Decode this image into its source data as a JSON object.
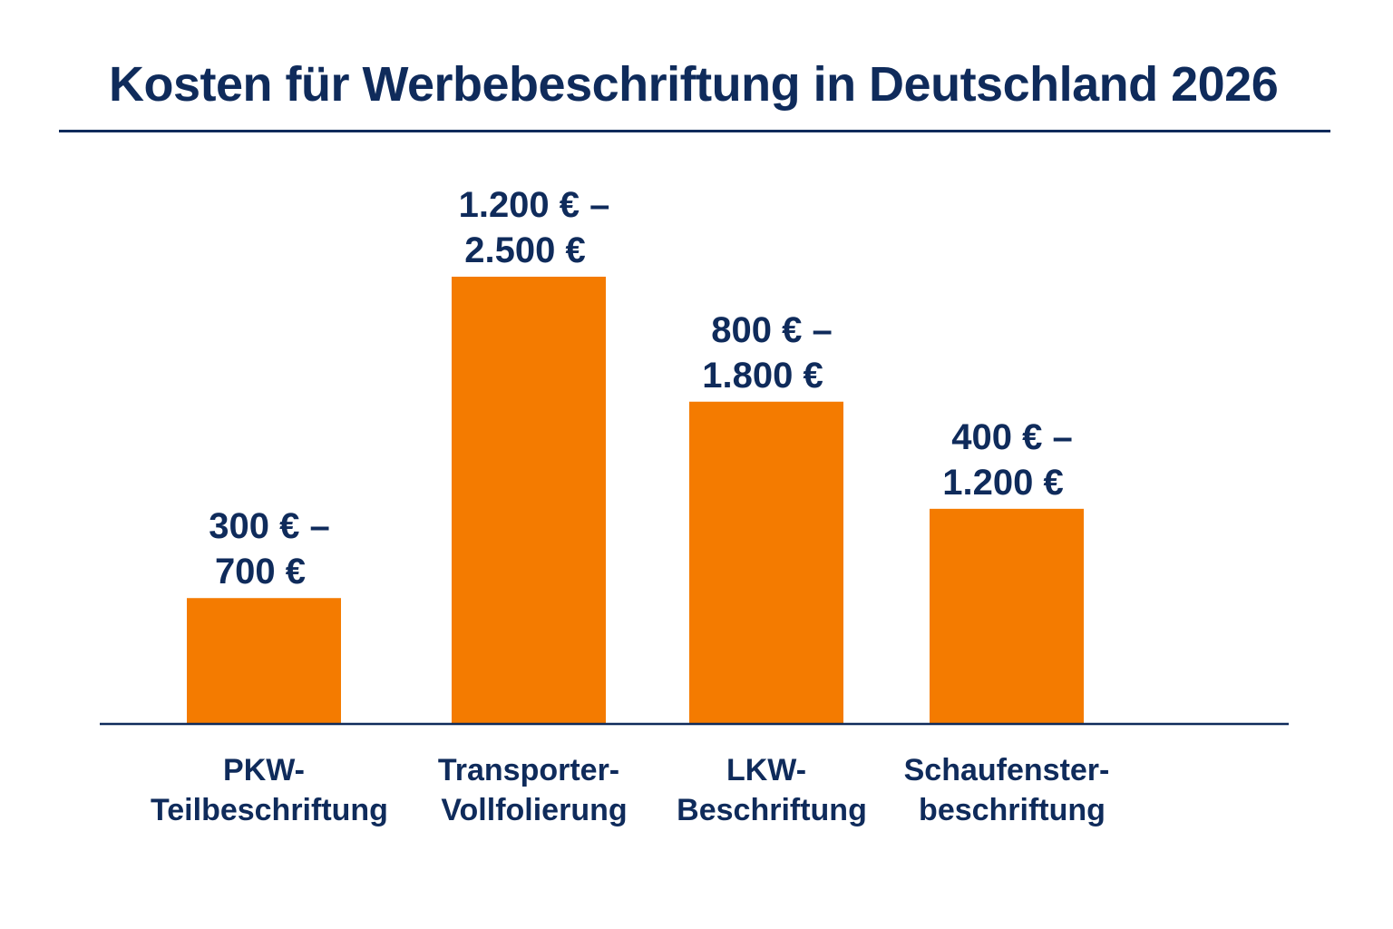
{
  "chart_data": {
    "type": "bar",
    "title": "Kosten für Werbebeschriftung in Deutschland 2026",
    "xlabel": "",
    "ylabel": "",
    "ylim": [
      0,
      2500
    ],
    "grid": false,
    "legend": "none",
    "categories": [
      [
        "PKW-",
        "Teilbeschriftung"
      ],
      [
        "Transporter-",
        "Vollfolierung"
      ],
      [
        "LKW-",
        "Beschriftung"
      ],
      [
        "Schaufenster-",
        "beschriftung"
      ]
    ],
    "series": [
      {
        "values": [
          700,
          2500,
          1800,
          1200
        ],
        "low_values": [
          300,
          1200,
          800,
          400
        ],
        "labels": [
          [
            "300 € –",
            "700 €"
          ],
          [
            "1.200 € –",
            "2.500 €"
          ],
          [
            "800 € –",
            "1.800 €"
          ],
          [
            "400 € –",
            "1.200 €"
          ]
        ]
      }
    ]
  },
  "colors": {
    "bar": "#F47B00",
    "text": "#0F2B5B",
    "axis": "#0F2B5B"
  }
}
